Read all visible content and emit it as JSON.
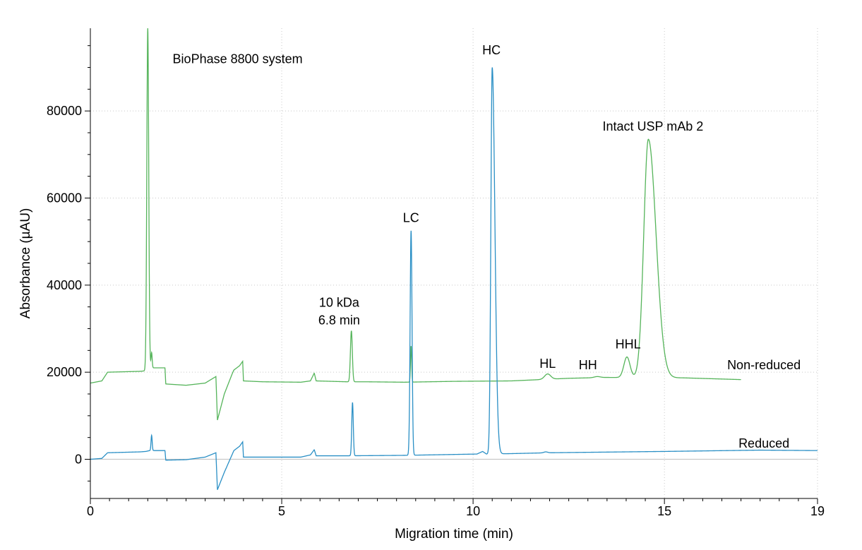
{
  "chart_data": {
    "type": "line",
    "title": "",
    "xlabel": "Migration time (min)",
    "ylabel": "Absorbance (µAU)",
    "xlim": [
      0,
      19
    ],
    "ylim": [
      -9000,
      99000
    ],
    "x_ticks": [
      0,
      5,
      10,
      15,
      19
    ],
    "y_ticks": [
      0,
      20000,
      40000,
      60000,
      80000
    ],
    "grid": true,
    "colors": {
      "non_reduced": "#55b45a",
      "reduced": "#2a8fc5",
      "zero_line": "#c8c8c8",
      "axis": "#000000"
    },
    "series": [
      {
        "name": "Non-reduced",
        "color": "#55b45a",
        "baseline": [
          [
            0,
            17500
          ],
          [
            0.3,
            18000
          ],
          [
            0.45,
            20000
          ],
          [
            1.3,
            20200
          ],
          [
            1.42,
            20300
          ],
          [
            1.55,
            21000
          ],
          [
            1.95,
            21000
          ],
          [
            1.97,
            17300
          ],
          [
            2.5,
            17000
          ],
          [
            3.0,
            17500
          ],
          [
            3.28,
            19000
          ],
          [
            3.32,
            9000
          ],
          [
            3.5,
            15000
          ],
          [
            3.7,
            19500
          ],
          [
            3.75,
            20500
          ],
          [
            3.9,
            21500
          ],
          [
            3.98,
            22500
          ],
          [
            4.0,
            18000
          ],
          [
            4.5,
            17800
          ],
          [
            5.5,
            17700
          ],
          [
            5.75,
            18000
          ],
          [
            5.85,
            19800
          ],
          [
            5.9,
            18000
          ],
          [
            6.7,
            17800
          ],
          [
            7.2,
            17800
          ],
          [
            8.2,
            17700
          ],
          [
            9.5,
            17900
          ],
          [
            11.0,
            18000
          ],
          [
            12.5,
            18600
          ],
          [
            13.5,
            18800
          ],
          [
            15.5,
            18700
          ],
          [
            17.0,
            18300
          ]
        ],
        "peaks": [
          {
            "x": 1.5,
            "y": 99000,
            "w": 0.025
          },
          {
            "x": 1.6,
            "y": 24500,
            "w": 0.015
          },
          {
            "x": 6.82,
            "y": 29500,
            "w": 0.025
          },
          {
            "x": 8.38,
            "y": 26000,
            "w": 0.015
          },
          {
            "x": 11.95,
            "y": 19600,
            "w": 0.08
          },
          {
            "x": 13.25,
            "y": 19000,
            "w": 0.08
          },
          {
            "x": 14.02,
            "y": 23500,
            "w": 0.08
          },
          {
            "x": 14.58,
            "y": 73500,
            "w": 0.12,
            "tail": 0.2
          }
        ]
      },
      {
        "name": "Reduced",
        "color": "#2a8fc5",
        "baseline": [
          [
            0,
            0
          ],
          [
            0.3,
            200
          ],
          [
            0.45,
            1500
          ],
          [
            1.3,
            1700
          ],
          [
            1.45,
            1800
          ],
          [
            1.55,
            2000
          ],
          [
            1.95,
            2000
          ],
          [
            1.97,
            -200
          ],
          [
            2.5,
            -100
          ],
          [
            3.0,
            500
          ],
          [
            3.28,
            1500
          ],
          [
            3.32,
            -7000
          ],
          [
            3.5,
            -3000
          ],
          [
            3.7,
            1000
          ],
          [
            3.75,
            2000
          ],
          [
            3.9,
            3000
          ],
          [
            3.98,
            4000
          ],
          [
            4.0,
            500
          ],
          [
            4.5,
            500
          ],
          [
            5.5,
            500
          ],
          [
            5.75,
            1000
          ],
          [
            5.85,
            2200
          ],
          [
            5.9,
            800
          ],
          [
            6.7,
            800
          ],
          [
            8.2,
            900
          ],
          [
            10.1,
            1200
          ],
          [
            10.25,
            1800
          ],
          [
            10.35,
            1200
          ],
          [
            11.0,
            1300
          ],
          [
            12.0,
            1500
          ],
          [
            15.0,
            1800
          ],
          [
            17.5,
            2100
          ],
          [
            19.0,
            2000
          ]
        ],
        "peaks": [
          {
            "x": 1.6,
            "y": 5500,
            "w": 0.015
          },
          {
            "x": 6.85,
            "y": 13000,
            "w": 0.02
          },
          {
            "x": 8.38,
            "y": 52500,
            "w": 0.025
          },
          {
            "x": 10.5,
            "y": 90000,
            "w": 0.035,
            "tail": 0.07
          },
          {
            "x": 11.9,
            "y": 1700,
            "w": 0.05
          }
        ]
      }
    ],
    "annotations": [
      {
        "id": "system",
        "text": "BioPhase 8800 system",
        "x": 2.15,
        "y": 91000,
        "anchor": "start"
      },
      {
        "id": "hc",
        "text": "HC",
        "x": 10.48,
        "y": 93000,
        "anchor": "middle"
      },
      {
        "id": "lc",
        "text": "LC",
        "x": 8.38,
        "y": 54500,
        "anchor": "middle"
      },
      {
        "id": "intact",
        "text": "Intact USP mAb 2",
        "x": 14.7,
        "y": 75500,
        "anchor": "middle"
      },
      {
        "id": "kda",
        "text": "10 kDa",
        "x": 6.5,
        "y": 35000,
        "anchor": "middle"
      },
      {
        "id": "min",
        "text": "6.8 min",
        "x": 6.5,
        "y": 31000,
        "anchor": "middle"
      },
      {
        "id": "hl",
        "text": "HL",
        "x": 11.95,
        "y": 21000,
        "anchor": "middle"
      },
      {
        "id": "hh",
        "text": "HH",
        "x": 13.0,
        "y": 20700,
        "anchor": "middle"
      },
      {
        "id": "hhl",
        "text": "HHL",
        "x": 14.05,
        "y": 25500,
        "anchor": "middle"
      },
      {
        "id": "nonreduced",
        "text": "Non-reduced",
        "x": 17.6,
        "y": 20700,
        "anchor": "middle"
      },
      {
        "id": "reduced",
        "text": "Reduced",
        "x": 17.6,
        "y": 2700,
        "anchor": "middle"
      }
    ]
  }
}
